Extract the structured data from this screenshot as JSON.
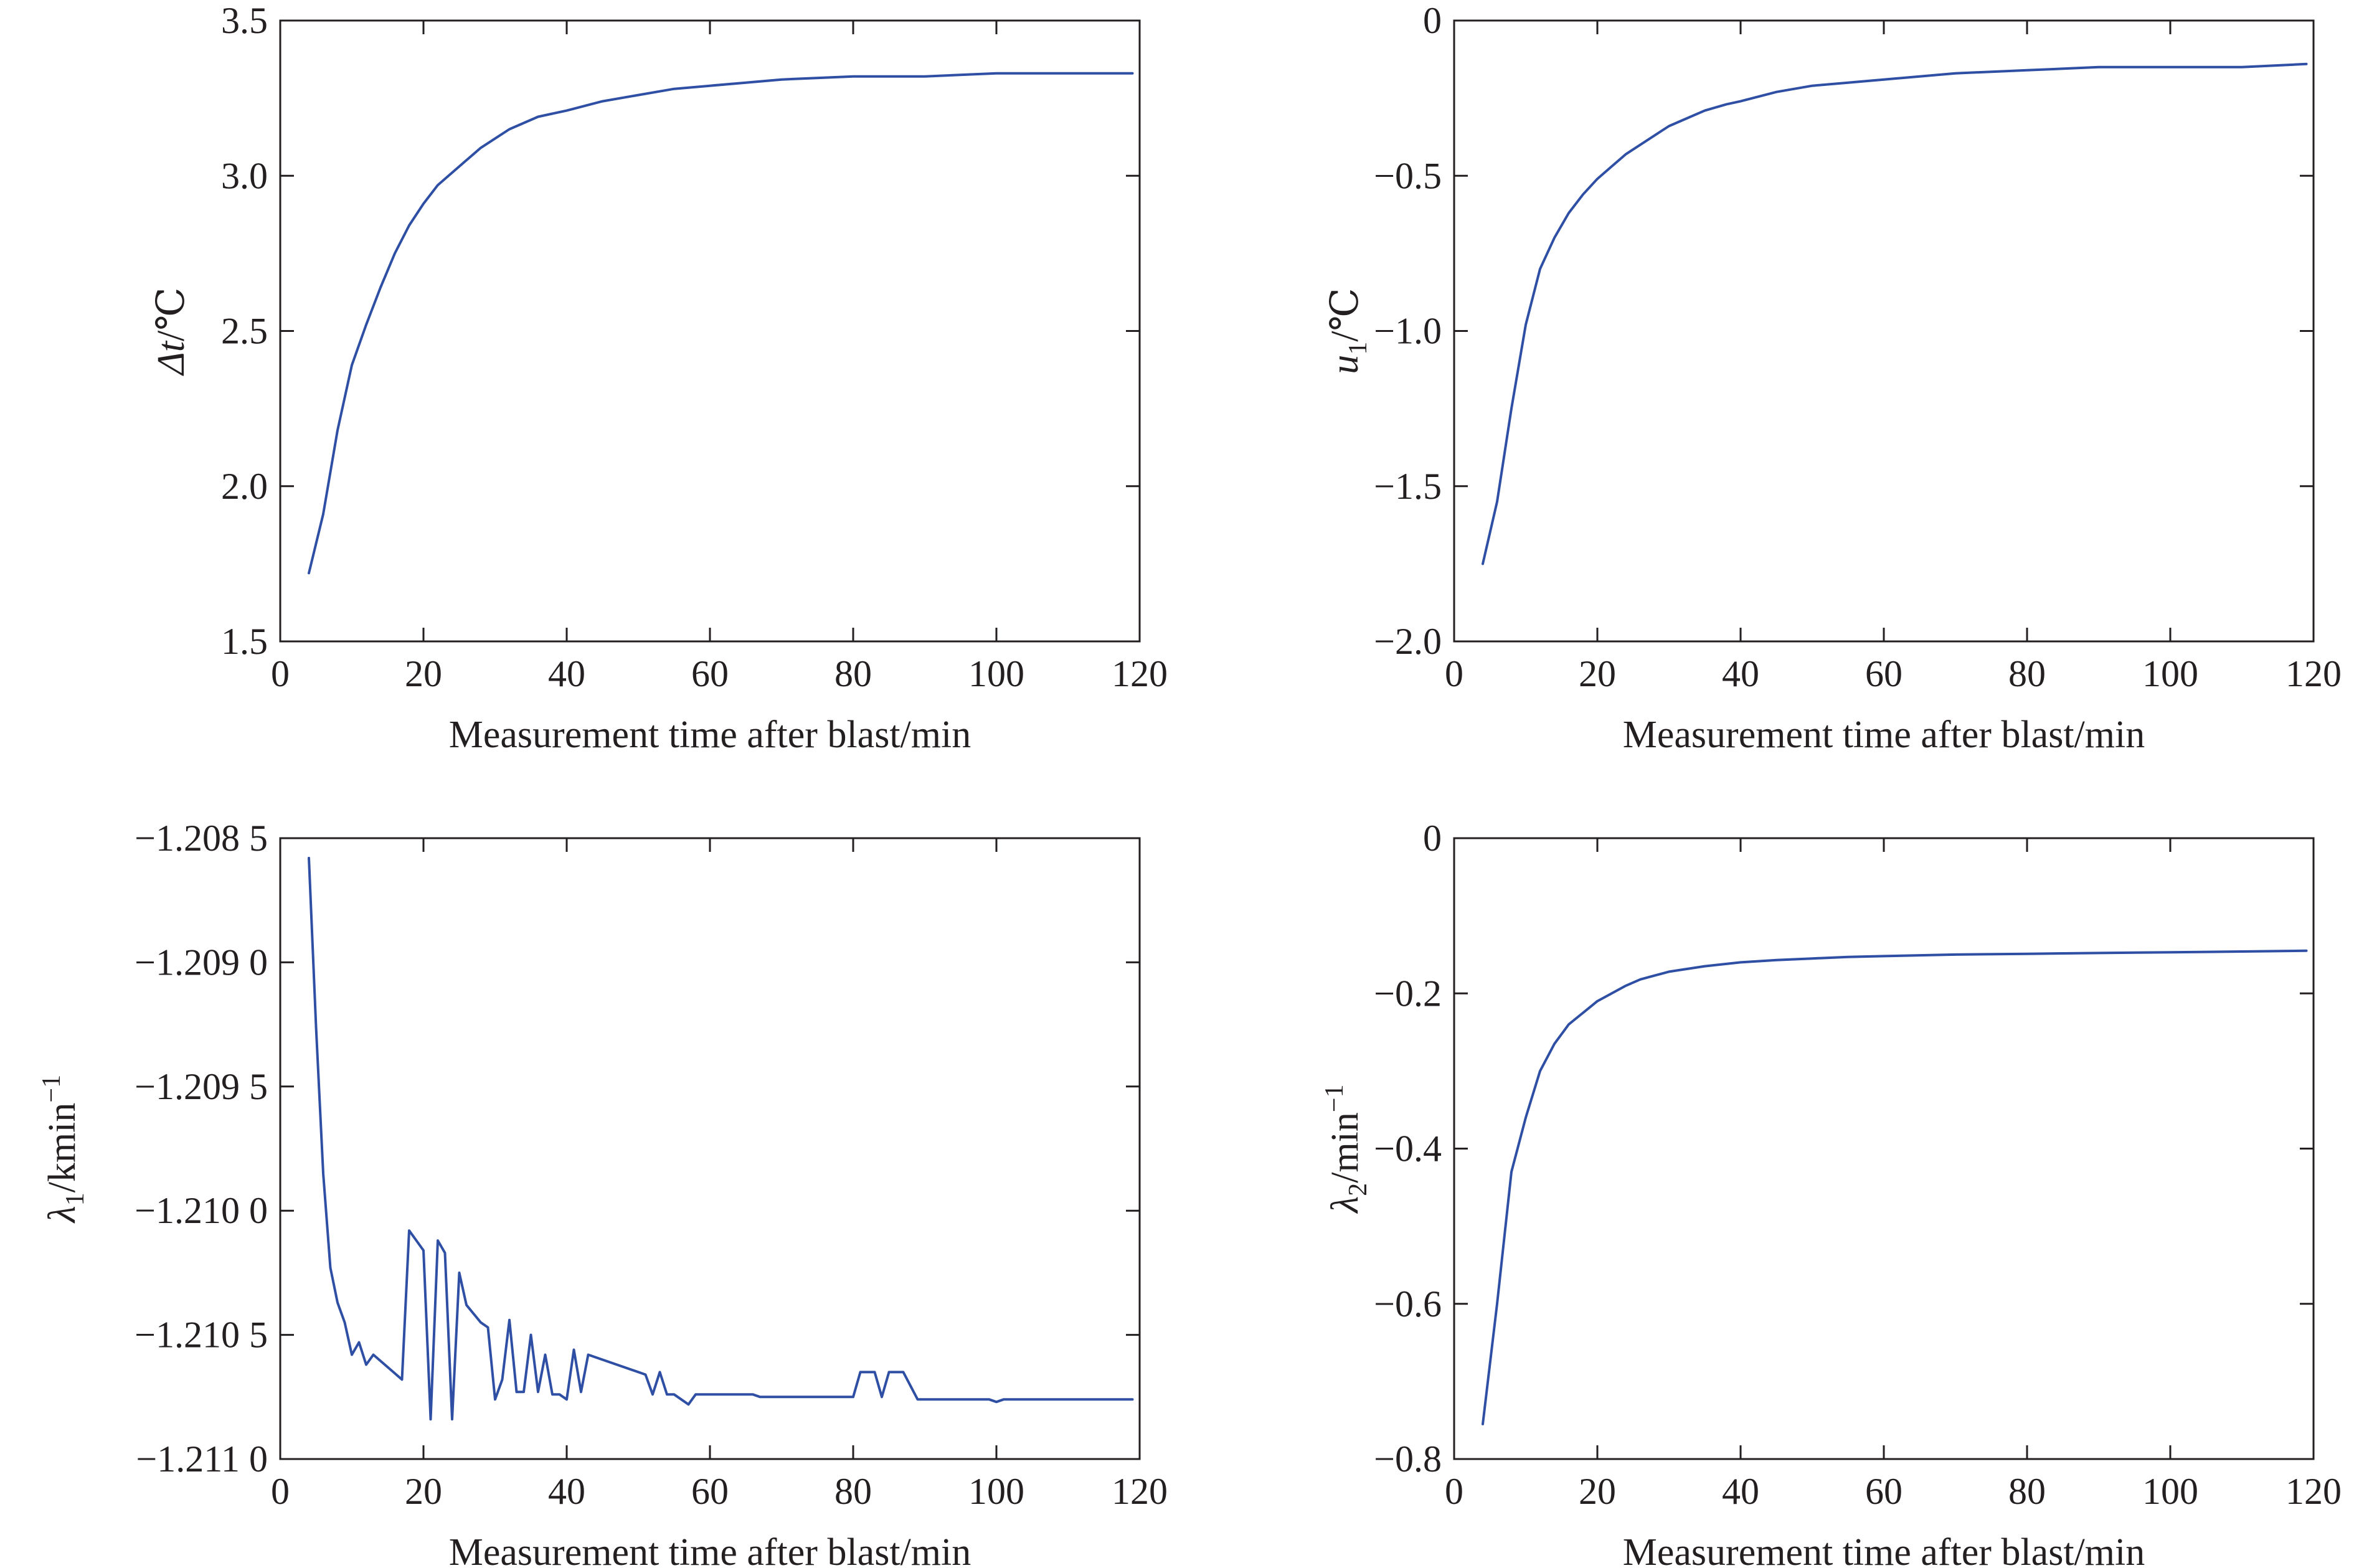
{
  "chart_data": [
    {
      "type": "line",
      "xlabel": "Measurement time after blast/min",
      "ylabel_main": "Δt",
      "ylabel_sub": "",
      "ylabel_unit": "/℃",
      "ylabel_italic": true,
      "xlim": [
        0,
        120
      ],
      "ylim": [
        1.5,
        3.5
      ],
      "xticks": [
        0,
        20,
        40,
        60,
        80,
        100,
        120
      ],
      "xtick_labels": [
        "0",
        "20",
        "40",
        "60",
        "80",
        "100",
        "120"
      ],
      "yticks": [
        1.5,
        2.0,
        2.5,
        3.0,
        3.5
      ],
      "ytick_labels": [
        "1.5",
        "2.0",
        "2.5",
        "3.0",
        "3.5"
      ],
      "grid": false,
      "color": "#2e4fa3",
      "x": [
        4,
        6,
        8,
        10,
        12,
        14,
        16,
        18,
        20,
        22,
        24,
        26,
        28,
        30,
        32,
        34,
        36,
        38,
        40,
        45,
        50,
        55,
        60,
        65,
        70,
        80,
        90,
        100,
        110,
        119
      ],
      "y": [
        1.72,
        1.91,
        2.18,
        2.39,
        2.52,
        2.64,
        2.75,
        2.84,
        2.91,
        2.97,
        3.01,
        3.05,
        3.09,
        3.12,
        3.15,
        3.17,
        3.19,
        3.2,
        3.21,
        3.24,
        3.26,
        3.28,
        3.29,
        3.3,
        3.31,
        3.32,
        3.32,
        3.33,
        3.33,
        3.33
      ]
    },
    {
      "type": "line",
      "xlabel": "Measurement time after blast/min",
      "ylabel_main": "u",
      "ylabel_sub": "1",
      "ylabel_unit": "/℃",
      "ylabel_italic": true,
      "xlim": [
        0,
        120
      ],
      "ylim": [
        -2.0,
        0
      ],
      "xticks": [
        0,
        20,
        40,
        60,
        80,
        100,
        120
      ],
      "xtick_labels": [
        "0",
        "20",
        "40",
        "60",
        "80",
        "100",
        "120"
      ],
      "yticks": [
        -2.0,
        -1.5,
        -1.0,
        -0.5,
        0
      ],
      "ytick_labels": [
        "−2.0",
        "−1.5",
        "−1.0",
        "−0.5",
        "0"
      ],
      "grid": false,
      "color": "#2e4fa3",
      "x": [
        4,
        6,
        8,
        10,
        12,
        14,
        16,
        18,
        20,
        22,
        24,
        26,
        28,
        30,
        32,
        35,
        38,
        40,
        45,
        50,
        55,
        60,
        65,
        70,
        80,
        90,
        100,
        110,
        119
      ],
      "y": [
        -1.75,
        -1.55,
        -1.25,
        -0.98,
        -0.8,
        -0.7,
        -0.62,
        -0.56,
        -0.51,
        -0.47,
        -0.43,
        -0.4,
        -0.37,
        -0.34,
        -0.32,
        -0.29,
        -0.27,
        -0.26,
        -0.23,
        -0.21,
        -0.2,
        -0.19,
        -0.18,
        -0.17,
        -0.16,
        -0.15,
        -0.15,
        -0.15,
        -0.14
      ]
    },
    {
      "type": "line",
      "xlabel": "Measurement time after blast/min",
      "ylabel_main": "λ",
      "ylabel_sub": "1",
      "ylabel_unit": "/kmin",
      "ylabel_sup": "−1",
      "ylabel_italic": true,
      "xlim": [
        0,
        120
      ],
      "ylim": [
        -1.211,
        -1.2085
      ],
      "xticks": [
        0,
        20,
        40,
        60,
        80,
        100,
        120
      ],
      "xtick_labels": [
        "0",
        "20",
        "40",
        "60",
        "80",
        "100",
        "120"
      ],
      "yticks": [
        -1.211,
        -1.2105,
        -1.21,
        -1.2095,
        -1.209,
        -1.2085
      ],
      "ytick_labels": [
        "−1.211 0",
        "−1.210 5",
        "−1.210 0",
        "−1.209 5",
        "−1.209 0",
        "−1.208 5"
      ],
      "grid": false,
      "color": "#2e4fa3",
      "x": [
        4,
        5,
        6,
        7,
        8,
        9,
        10,
        11,
        12,
        13,
        17,
        18,
        20,
        21,
        22,
        23,
        24,
        25,
        26,
        28,
        29,
        30,
        31,
        32,
        33,
        34,
        35,
        36,
        37,
        38,
        39,
        40,
        41,
        42,
        43,
        51,
        52,
        53,
        54,
        55,
        56,
        57,
        58,
        66,
        67,
        80,
        81,
        83,
        84,
        85,
        87,
        89,
        99,
        100,
        101,
        119
      ],
      "y": [
        -1.20858,
        -1.20926,
        -1.20985,
        -1.21023,
        -1.21037,
        -1.21045,
        -1.21058,
        -1.21053,
        -1.21062,
        -1.21058,
        -1.21068,
        -1.21008,
        -1.21016,
        -1.21084,
        -1.21012,
        -1.21017,
        -1.21084,
        -1.21025,
        -1.21038,
        -1.21045,
        -1.21047,
        -1.21076,
        -1.21068,
        -1.21044,
        -1.21073,
        -1.21073,
        -1.2105,
        -1.21073,
        -1.21058,
        -1.21074,
        -1.21074,
        -1.21076,
        -1.21056,
        -1.21073,
        -1.21058,
        -1.21066,
        -1.21074,
        -1.21065,
        -1.21074,
        -1.21074,
        -1.21076,
        -1.21078,
        -1.21074,
        -1.21074,
        -1.21075,
        -1.21075,
        -1.21065,
        -1.21065,
        -1.21075,
        -1.21065,
        -1.21065,
        -1.21076,
        -1.21076,
        -1.21077,
        -1.21076,
        -1.21076
      ]
    },
    {
      "type": "line",
      "xlabel": "Measurement time after blast/min",
      "ylabel_main": "λ",
      "ylabel_sub": "2",
      "ylabel_unit": "/min",
      "ylabel_sup": "−1",
      "ylabel_italic": true,
      "xlim": [
        0,
        120
      ],
      "ylim": [
        -0.8,
        0
      ],
      "xticks": [
        0,
        20,
        40,
        60,
        80,
        100,
        120
      ],
      "xtick_labels": [
        "0",
        "20",
        "40",
        "60",
        "80",
        "100",
        "120"
      ],
      "yticks": [
        -0.8,
        -0.6,
        -0.4,
        -0.2,
        0
      ],
      "ytick_labels": [
        "−0.8",
        "−0.6",
        "−0.4",
        "−0.2",
        "0"
      ],
      "grid": false,
      "color": "#2e4fa3",
      "x": [
        4,
        6,
        8,
        10,
        12,
        14,
        16,
        18,
        20,
        22,
        24,
        26,
        28,
        30,
        35,
        40,
        45,
        50,
        55,
        60,
        70,
        80,
        90,
        100,
        110,
        119
      ],
      "y": [
        -0.755,
        -0.6,
        -0.43,
        -0.36,
        -0.3,
        -0.265,
        -0.24,
        -0.225,
        -0.21,
        -0.2,
        -0.19,
        -0.182,
        -0.177,
        -0.172,
        -0.165,
        -0.16,
        -0.157,
        -0.155,
        -0.153,
        -0.152,
        -0.15,
        -0.149,
        -0.148,
        -0.147,
        -0.146,
        -0.145
      ]
    }
  ]
}
